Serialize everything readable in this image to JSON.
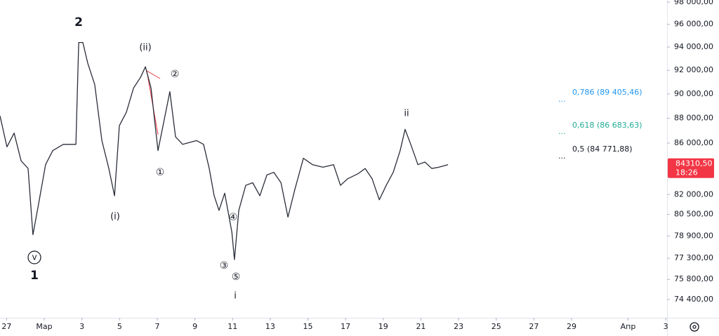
{
  "chart_data": {
    "type": "line",
    "color": "#2a2e39",
    "log_scale": true,
    "grid": false,
    "x": [
      -2.35,
      -1.98,
      -1.6,
      -1.23,
      -0.86,
      -0.6,
      -0.3,
      0.07,
      0.45,
      1.01,
      1.68,
      1.83,
      2.05,
      2.31,
      2.68,
      3.06,
      3.43,
      3.73,
      3.99,
      4.36,
      4.74,
      5.11,
      5.37,
      5.67,
      6.04,
      6.41,
      6.67,
      6.97,
      7.35,
      8.09,
      8.46,
      8.76,
      9.02,
      9.28,
      9.58,
      9.96,
      10.1,
      10.33,
      10.7,
      11.07,
      11.45,
      11.82,
      12.19,
      12.57,
      12.94,
      13.31,
      13.76,
      14.24,
      14.8,
      15.36,
      15.73,
      16.11,
      16.67,
      17.04,
      17.41,
      17.79,
      18.16,
      18.53,
      18.9,
      19.16,
      19.46,
      19.84,
      20.21,
      20.58,
      20.95,
      21.44
    ],
    "values": [
      88200,
      85700,
      86800,
      84600,
      84000,
      79000,
      81300,
      84300,
      85400,
      85900,
      85900,
      94400,
      94400,
      92600,
      90800,
      86200,
      84000,
      81900,
      87400,
      88500,
      90500,
      91400,
      92300,
      90500,
      85400,
      88200,
      90200,
      86500,
      85900,
      86200,
      85900,
      84000,
      81900,
      80800,
      82100,
      79200,
      77200,
      80800,
      82700,
      82900,
      81900,
      83500,
      83700,
      82900,
      80300,
      82400,
      84800,
      84300,
      84100,
      84300,
      82700,
      83200,
      83600,
      84000,
      83200,
      81600,
      82700,
      83700,
      85400,
      87100,
      85900,
      84300,
      84500,
      84000,
      84100,
      84300
    ],
    "xlim": [
      -2.35,
      33.07
    ],
    "xticks": [
      {
        "value": -2,
        "label": "27"
      },
      {
        "value": 0,
        "label": "Мар"
      },
      {
        "value": 2,
        "label": "3"
      },
      {
        "value": 4,
        "label": "5"
      },
      {
        "value": 6,
        "label": "7"
      },
      {
        "value": 8,
        "label": "9"
      },
      {
        "value": 10,
        "label": "11"
      },
      {
        "value": 12,
        "label": "13"
      },
      {
        "value": 14,
        "label": "15"
      },
      {
        "value": 16,
        "label": "17"
      },
      {
        "value": 18,
        "label": "19"
      },
      {
        "value": 20,
        "label": "21"
      },
      {
        "value": 22,
        "label": "23"
      },
      {
        "value": 24,
        "label": "25"
      },
      {
        "value": 26,
        "label": "27"
      },
      {
        "value": 28,
        "label": "29"
      },
      {
        "value": 31,
        "label": "Апр"
      },
      {
        "value": 33,
        "label": "3"
      }
    ],
    "ylim": [
      73150,
      98190
    ],
    "yticks": [
      {
        "value": 98000,
        "label": "98 000,00"
      },
      {
        "value": 96000,
        "label": "96 000,00"
      },
      {
        "value": 94000,
        "label": "94 000,00"
      },
      {
        "value": 92000,
        "label": "92 000,00"
      },
      {
        "value": 90000,
        "label": "90 000,00"
      },
      {
        "value": 88000,
        "label": "88 000,00"
      },
      {
        "value": 86000,
        "label": "86 000,00"
      },
      {
        "value": 82000,
        "label": "82 000,00"
      },
      {
        "value": 80500,
        "label": "80 500,00"
      },
      {
        "value": 78900,
        "label": "78 900,00"
      },
      {
        "value": 77300,
        "label": "77 300,00"
      },
      {
        "value": 75800,
        "label": "75 800,00"
      },
      {
        "value": 74400,
        "label": "74 400,00"
      }
    ],
    "last_price_label": "84310,50",
    "countdown": "18:26",
    "annotations": [
      {
        "text": "2"
      },
      {
        "text": "(ii)"
      },
      {
        "text": "②"
      },
      {
        "text": "①"
      },
      {
        "text": "(i)"
      },
      {
        "text": "v"
      },
      {
        "text": "1"
      },
      {
        "text": "③"
      },
      {
        "text": "④"
      },
      {
        "text": "⑤"
      },
      {
        "text": "i"
      },
      {
        "text": "ii"
      },
      {
        "text": "0,786 (89 405,46)",
        "color": "#2196f3"
      },
      {
        "text": "0,618 (86 683,63)",
        "color": "#22ab94"
      },
      {
        "text": "0,5 (84 771,88)",
        "color": "#131722"
      }
    ]
  }
}
